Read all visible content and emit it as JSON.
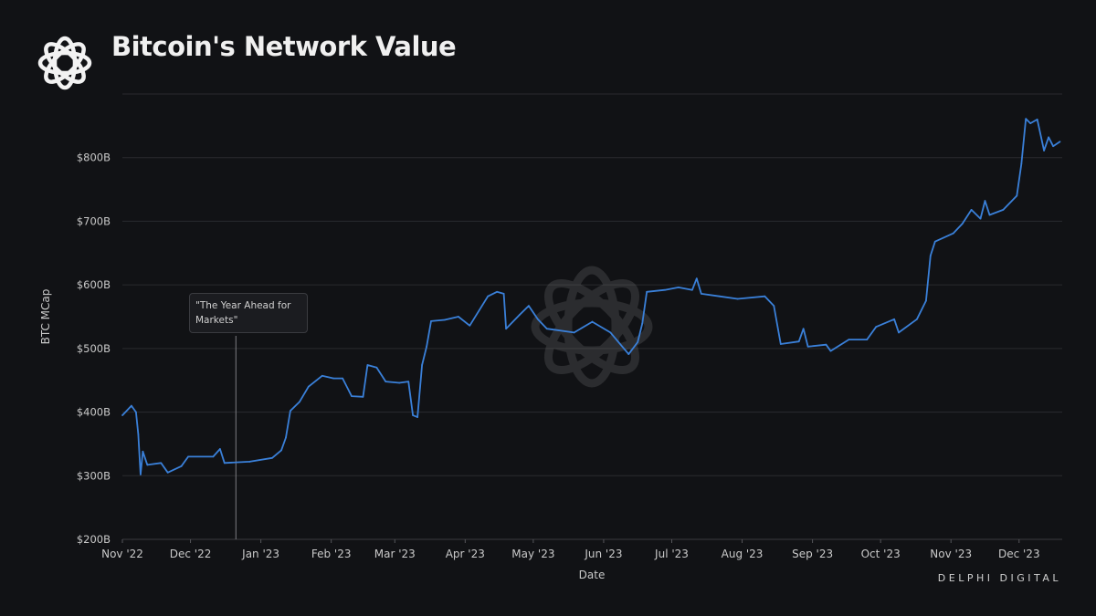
{
  "title": "Bitcoin's Network Value",
  "brand": "DELPHI DIGITAL",
  "colors": {
    "background": "#111215",
    "line": "#3a80d9",
    "grid": "#2a2b2f",
    "text": "#c9c9c9"
  },
  "icons": {
    "logo": "delphi-knot-logo",
    "watermark": "delphi-knot-watermark"
  },
  "chart_data": {
    "type": "line",
    "title": "Bitcoin's Network Value",
    "xlabel": "Date",
    "ylabel": "BTC MCap",
    "xlim": [
      "2022-11-01",
      "2023-12-20"
    ],
    "ylim": [
      200,
      900
    ],
    "y_unit": "billion USD",
    "grid": true,
    "y_ticks": [
      {
        "value": 200,
        "label": "$200B"
      },
      {
        "value": 300,
        "label": "$300B"
      },
      {
        "value": 400,
        "label": "$400B"
      },
      {
        "value": 500,
        "label": "$500B"
      },
      {
        "value": 600,
        "label": "$600B"
      },
      {
        "value": 700,
        "label": "$700B"
      },
      {
        "value": 800,
        "label": "$800B"
      },
      {
        "value": 900,
        "label": ""
      }
    ],
    "x_ticks": [
      {
        "date": "2022-11-01",
        "label": "Nov '22"
      },
      {
        "date": "2022-12-01",
        "label": "Dec '22"
      },
      {
        "date": "2023-01-01",
        "label": "Jan '23"
      },
      {
        "date": "2023-02-01",
        "label": "Feb '23"
      },
      {
        "date": "2023-03-01",
        "label": "Mar '23"
      },
      {
        "date": "2023-04-01",
        "label": "Apr '23"
      },
      {
        "date": "2023-05-01",
        "label": "May '23"
      },
      {
        "date": "2023-06-01",
        "label": "Jun '23"
      },
      {
        "date": "2023-07-01",
        "label": "Jul '23"
      },
      {
        "date": "2023-08-01",
        "label": "Aug '23"
      },
      {
        "date": "2023-09-01",
        "label": "Sep '23"
      },
      {
        "date": "2023-10-01",
        "label": "Oct '23"
      },
      {
        "date": "2023-11-01",
        "label": "Nov '23"
      },
      {
        "date": "2023-12-01",
        "label": "Dec '23"
      }
    ],
    "annotation": {
      "date": "2022-12-21",
      "text": "\"The Year Ahead for Markets\""
    },
    "series": [
      {
        "x": [
          "2022-11-01",
          "2022-11-05",
          "2022-11-07",
          "2022-11-08",
          "2022-11-09",
          "2022-11-10",
          "2022-11-12",
          "2022-11-18",
          "2022-11-21",
          "2022-11-27",
          "2022-11-30",
          "2022-12-11",
          "2022-12-14",
          "2022-12-16",
          "2022-12-27",
          "2023-01-06",
          "2023-01-10",
          "2023-01-12",
          "2023-01-14",
          "2023-01-18",
          "2023-01-22",
          "2023-01-28",
          "2023-02-02",
          "2023-02-06",
          "2023-02-10",
          "2023-02-15",
          "2023-02-17",
          "2023-02-21",
          "2023-02-25",
          "2023-03-03",
          "2023-03-07",
          "2023-03-09",
          "2023-03-11",
          "2023-03-13",
          "2023-03-15",
          "2023-03-17",
          "2023-03-23",
          "2023-03-29",
          "2023-04-03",
          "2023-04-11",
          "2023-04-15",
          "2023-04-18",
          "2023-04-19",
          "2023-04-25",
          "2023-04-29",
          "2023-05-03",
          "2023-05-07",
          "2023-05-19",
          "2023-05-27",
          "2023-06-04",
          "2023-06-12",
          "2023-06-16",
          "2023-06-18",
          "2023-06-20",
          "2023-06-28",
          "2023-07-04",
          "2023-07-10",
          "2023-07-12",
          "2023-07-14",
          "2023-07-22",
          "2023-07-30",
          "2023-08-11",
          "2023-08-15",
          "2023-08-18",
          "2023-08-26",
          "2023-08-28",
          "2023-08-30",
          "2023-09-07",
          "2023-09-09",
          "2023-09-17",
          "2023-09-25",
          "2023-09-29",
          "2023-10-07",
          "2023-10-09",
          "2023-10-17",
          "2023-10-21",
          "2023-10-23",
          "2023-10-25",
          "2023-11-02",
          "2023-11-06",
          "2023-11-10",
          "2023-11-14",
          "2023-11-16",
          "2023-11-18",
          "2023-11-24",
          "2023-11-30",
          "2023-12-02",
          "2023-12-04",
          "2023-12-06",
          "2023-12-09",
          "2023-12-12",
          "2023-12-14",
          "2023-12-16",
          "2023-12-19"
        ],
        "values": [
          395,
          410,
          400,
          365,
          302,
          338,
          317,
          320,
          305,
          315,
          330,
          330,
          342,
          320,
          322,
          328,
          340,
          360,
          402,
          416,
          440,
          457,
          453,
          453,
          425,
          424,
          474,
          470,
          448,
          446,
          448,
          395,
          392,
          474,
          503,
          543,
          545,
          550,
          536,
          582,
          589,
          586,
          531,
          553,
          567,
          546,
          531,
          525,
          542,
          525,
          491,
          510,
          539,
          589,
          592,
          596,
          592,
          610,
          586,
          582,
          578,
          582,
          567,
          507,
          511,
          531,
          503,
          506,
          496,
          514,
          514,
          534,
          546,
          525,
          546,
          575,
          646,
          668,
          681,
          696,
          718,
          704,
          732,
          710,
          718,
          740,
          790,
          861,
          854,
          860,
          811,
          832,
          818,
          825
        ]
      }
    ]
  }
}
